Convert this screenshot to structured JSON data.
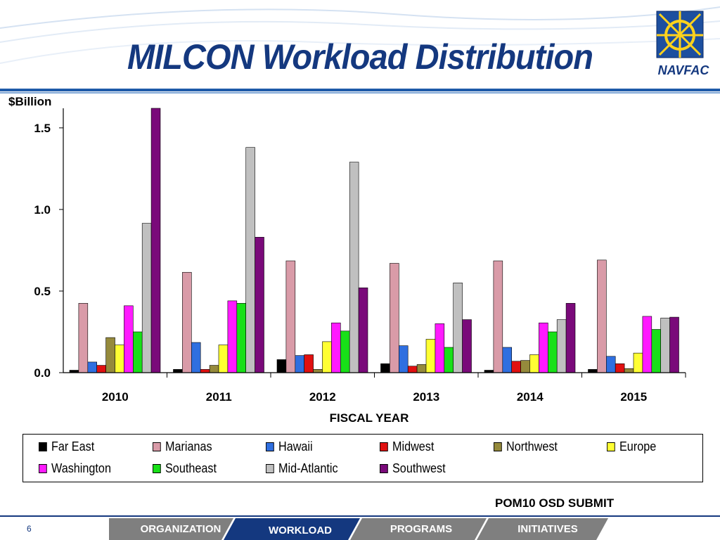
{
  "header": {
    "title": "MILCON Workload Distribution",
    "logo_text": "NAVFAC"
  },
  "chart_data": {
    "type": "bar",
    "ylabel": "$Billion",
    "xlabel": "FISCAL YEAR",
    "ylim": [
      0,
      1.62
    ],
    "yticks": [
      "0.0",
      "0.5",
      "1.0",
      "1.5"
    ],
    "ytick_values": [
      0,
      0.5,
      1.0,
      1.5
    ],
    "grid": false,
    "legend_position": "bottom",
    "categories": [
      "2010",
      "2011",
      "2012",
      "2013",
      "2014",
      "2015"
    ],
    "series": [
      {
        "name": "Far East",
        "color": "#000000",
        "values": [
          0.015,
          0.02,
          0.08,
          0.055,
          0.015,
          0.02
        ]
      },
      {
        "name": "Marianas",
        "color": "#d99ba8",
        "values": [
          0.425,
          0.615,
          0.685,
          0.67,
          0.685,
          0.69
        ]
      },
      {
        "name": "Hawaii",
        "color": "#2f6fe0",
        "values": [
          0.065,
          0.185,
          0.105,
          0.165,
          0.155,
          0.1
        ]
      },
      {
        "name": "Midwest",
        "color": "#e01010",
        "values": [
          0.045,
          0.02,
          0.11,
          0.04,
          0.07,
          0.055
        ]
      },
      {
        "name": "Northwest",
        "color": "#958a3c",
        "values": [
          0.215,
          0.045,
          0.02,
          0.05,
          0.075,
          0.025
        ]
      },
      {
        "name": "Europe",
        "color": "#ffff33",
        "values": [
          0.17,
          0.17,
          0.19,
          0.205,
          0.11,
          0.12
        ]
      },
      {
        "name": "Washington",
        "color": "#ff1aff",
        "values": [
          0.41,
          0.44,
          0.305,
          0.3,
          0.305,
          0.345
        ]
      },
      {
        "name": "Southeast",
        "color": "#18e018",
        "values": [
          0.25,
          0.425,
          0.255,
          0.155,
          0.25,
          0.265
        ]
      },
      {
        "name": "Mid-Atlantic",
        "color": "#c0c0c0",
        "values": [
          0.915,
          1.38,
          1.29,
          0.55,
          0.325,
          0.335
        ]
      },
      {
        "name": "Southwest",
        "color": "#7a0a7a",
        "values": [
          1.62,
          0.83,
          0.52,
          0.325,
          0.425,
          0.34
        ]
      }
    ]
  },
  "footer": {
    "source_note": "POM10 OSD SUBMIT",
    "page_number": "6",
    "nav": [
      {
        "label": "ORGANIZATION",
        "active": false
      },
      {
        "label": "WORKLOAD",
        "active": true
      },
      {
        "label": "PROGRAMS",
        "active": false
      },
      {
        "label": "INITIATIVES",
        "active": false
      }
    ]
  }
}
